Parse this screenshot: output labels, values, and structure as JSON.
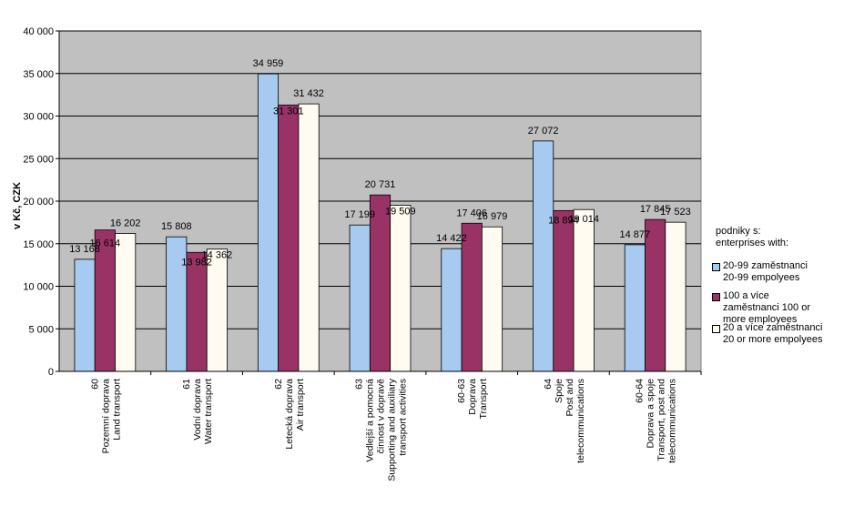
{
  "chart_data": {
    "type": "bar",
    "ylabel": "v Kč, CZK",
    "ylim": [
      0,
      40000
    ],
    "ytick_step": 5000,
    "ytick_labels": [
      "0",
      "5 000",
      "10 000",
      "15 000",
      "20 000",
      "25 000",
      "30 000",
      "35 000",
      "40 000"
    ],
    "grid": true,
    "legend_position": "right",
    "legend_title": [
      "podniky s:",
      "enterprises with:"
    ],
    "categories": [
      [
        "60",
        "Pozemní doprava",
        "Land transport"
      ],
      [
        "61",
        "Vodní doprava",
        "Water transport"
      ],
      [
        "62",
        "Letecká doprava",
        "Air transport"
      ],
      [
        "63",
        "Vedlejší a pomocná",
        "činnost v dopravě",
        "Supporting and auxiliary",
        "transport activities"
      ],
      [
        "60-63",
        "Doprava",
        "Transport"
      ],
      [
        "64",
        "Spoje",
        "Post and",
        "telecommunications"
      ],
      [
        "60-64",
        "Doprava a spoje",
        "Transport, post and",
        "telecommunications"
      ]
    ],
    "series": [
      {
        "name": [
          "20-99 zaměstnanci",
          "20-99 empolyees"
        ],
        "color": "#a6caf0",
        "values": [
          13168,
          15808,
          34959,
          17199,
          14422,
          27072,
          14877
        ],
        "labels": [
          "13 168",
          "15 808",
          "34 959",
          "17 199",
          "14 422",
          "27 072",
          "14 877"
        ]
      },
      {
        "name": [
          "100 a více",
          "zaměstnanci    100 or",
          "more employees"
        ],
        "color": "#993366",
        "values": [
          16614,
          13982,
          31301,
          20731,
          17406,
          18894,
          17845
        ],
        "labels": [
          "16 614",
          "13 982",
          "31 301",
          "20 731",
          "17 406",
          "18 894",
          "17 845"
        ]
      },
      {
        "name": [
          "20 a více zaměstnanci",
          "20 or more empolyees"
        ],
        "color": "#fffbf0",
        "values": [
          16202,
          14362,
          31432,
          19509,
          16979,
          19014,
          17523
        ],
        "labels": [
          "16 202",
          "14 362",
          "31 432",
          "19 509",
          "16 979",
          "19 014",
          "17 523"
        ]
      }
    ]
  }
}
